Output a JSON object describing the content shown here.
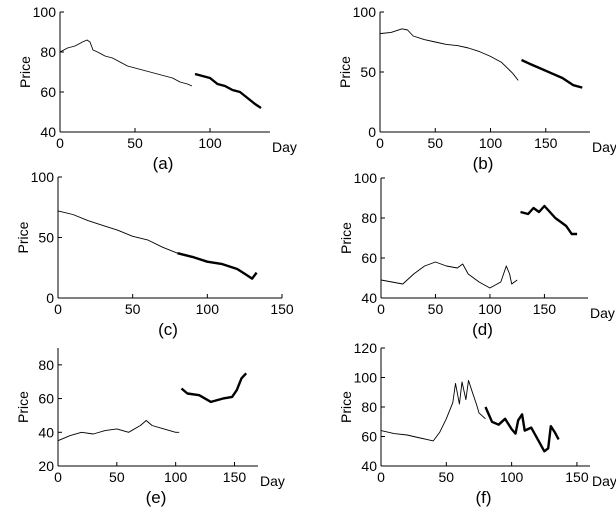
{
  "chart_data": [
    {
      "type": "line",
      "caption": "(a)",
      "ylabel": "Price",
      "xlabel": "Day",
      "xlim": [
        0,
        140
      ],
      "ylim": [
        40,
        100
      ],
      "xticks": [
        "0",
        "50",
        "100"
      ],
      "yticks": [
        "40",
        "60",
        "80",
        "100"
      ],
      "series": [
        {
          "style": "thin",
          "x": [
            0,
            5,
            10,
            15,
            18,
            20,
            22,
            25,
            30,
            35,
            40,
            45,
            50,
            55,
            60,
            65,
            70,
            75,
            80,
            85,
            88
          ],
          "y": [
            80,
            82,
            83,
            85,
            86,
            85,
            81,
            80,
            78,
            77,
            75,
            73,
            72,
            71,
            70,
            69,
            68,
            67,
            65,
            64,
            63
          ]
        },
        {
          "style": "thick",
          "x": [
            90,
            95,
            100,
            105,
            110,
            115,
            120,
            125,
            130,
            134
          ],
          "y": [
            69,
            68,
            67,
            64,
            63,
            61,
            60,
            57,
            54,
            52
          ]
        }
      ]
    },
    {
      "type": "line",
      "caption": "(b)",
      "ylabel": "Price",
      "xlabel": "Day",
      "xlim": [
        0,
        190
      ],
      "ylim": [
        0,
        100
      ],
      "xticks": [
        "0",
        "50",
        "100",
        "150"
      ],
      "yticks": [
        "0",
        "50",
        "100"
      ],
      "series": [
        {
          "style": "thin",
          "x": [
            0,
            10,
            20,
            25,
            30,
            40,
            50,
            60,
            70,
            80,
            90,
            100,
            110,
            120,
            125
          ],
          "y": [
            82,
            83,
            86,
            85,
            80,
            77,
            75,
            73,
            72,
            70,
            67,
            63,
            58,
            49,
            43
          ]
        },
        {
          "style": "thick",
          "x": [
            128,
            135,
            145,
            155,
            165,
            175,
            183
          ],
          "y": [
            60,
            57,
            53,
            49,
            45,
            39,
            37
          ]
        }
      ]
    },
    {
      "type": "line",
      "caption": "(c)",
      "ylabel": "Price",
      "xlabel": "",
      "xlim": [
        0,
        150
      ],
      "ylim": [
        0,
        100
      ],
      "xticks": [
        "0",
        "50",
        "100",
        "150"
      ],
      "yticks": [
        "0",
        "50",
        "100"
      ],
      "series": [
        {
          "style": "thin",
          "x": [
            0,
            10,
            20,
            30,
            40,
            50,
            60,
            70,
            80
          ],
          "y": [
            72,
            69,
            64,
            60,
            56,
            51,
            48,
            42,
            37
          ]
        },
        {
          "style": "thick",
          "x": [
            80,
            90,
            100,
            110,
            120,
            125,
            130,
            133
          ],
          "y": [
            37,
            34,
            30,
            28,
            24,
            20,
            16,
            21
          ]
        }
      ]
    },
    {
      "type": "line",
      "caption": "(d)",
      "ylabel": "Price",
      "xlabel": "Day",
      "xlim": [
        0,
        190
      ],
      "ylim": [
        40,
        100
      ],
      "xticks": [
        "0",
        "50",
        "100",
        "150"
      ],
      "yticks": [
        "40",
        "60",
        "80",
        "100"
      ],
      "series": [
        {
          "style": "thin",
          "x": [
            0,
            10,
            20,
            30,
            40,
            50,
            60,
            70,
            75,
            80,
            90,
            100,
            110,
            115,
            118,
            120,
            125
          ],
          "y": [
            49,
            48,
            47,
            52,
            56,
            58,
            56,
            55,
            57,
            52,
            48,
            45,
            48,
            56,
            52,
            47,
            49
          ]
        },
        {
          "style": "thick",
          "x": [
            128,
            135,
            140,
            145,
            150,
            155,
            160,
            165,
            170,
            175,
            180
          ],
          "y": [
            83,
            82,
            85,
            83,
            86,
            83,
            80,
            78,
            76,
            72,
            72
          ]
        }
      ]
    },
    {
      "type": "line",
      "caption": "(e)",
      "ylabel": "Price",
      "xlabel": "Day",
      "xlim": [
        0,
        170
      ],
      "ylim": [
        20,
        90
      ],
      "xticks": [
        "0",
        "50",
        "100",
        "150"
      ],
      "yticks": [
        "20",
        "40",
        "60",
        "80"
      ],
      "series": [
        {
          "style": "thin",
          "x": [
            0,
            10,
            20,
            30,
            40,
            50,
            60,
            70,
            75,
            80,
            90,
            100,
            103
          ],
          "y": [
            35,
            38,
            40,
            39,
            41,
            42,
            40,
            44,
            47,
            44,
            42,
            40,
            40
          ]
        },
        {
          "style": "thick",
          "x": [
            105,
            110,
            120,
            130,
            140,
            148,
            152,
            156,
            160
          ],
          "y": [
            66,
            63,
            62,
            58,
            60,
            61,
            65,
            72,
            75
          ]
        }
      ]
    },
    {
      "type": "line",
      "caption": "(f)",
      "ylabel": "Price",
      "xlabel": "Day",
      "xlim": [
        0,
        160
      ],
      "ylim": [
        40,
        120
      ],
      "xticks": [
        "0",
        "50",
        "100",
        "150"
      ],
      "yticks": [
        "40",
        "60",
        "80",
        "100",
        "120"
      ],
      "series": [
        {
          "style": "thin",
          "x": [
            0,
            10,
            20,
            30,
            35,
            40,
            45,
            50,
            55,
            57,
            60,
            62,
            65,
            67,
            70,
            73,
            75,
            80
          ],
          "y": [
            64,
            62,
            61,
            59,
            58,
            57,
            63,
            72,
            83,
            96,
            82,
            97,
            85,
            98,
            90,
            82,
            76,
            72
          ]
        },
        {
          "style": "thick",
          "x": [
            80,
            85,
            90,
            95,
            100,
            103,
            105,
            108,
            110,
            115,
            120,
            125,
            128,
            130,
            133,
            136
          ],
          "y": [
            80,
            70,
            68,
            72,
            65,
            62,
            71,
            75,
            64,
            66,
            58,
            50,
            52,
            67,
            63,
            58
          ]
        }
      ]
    }
  ]
}
